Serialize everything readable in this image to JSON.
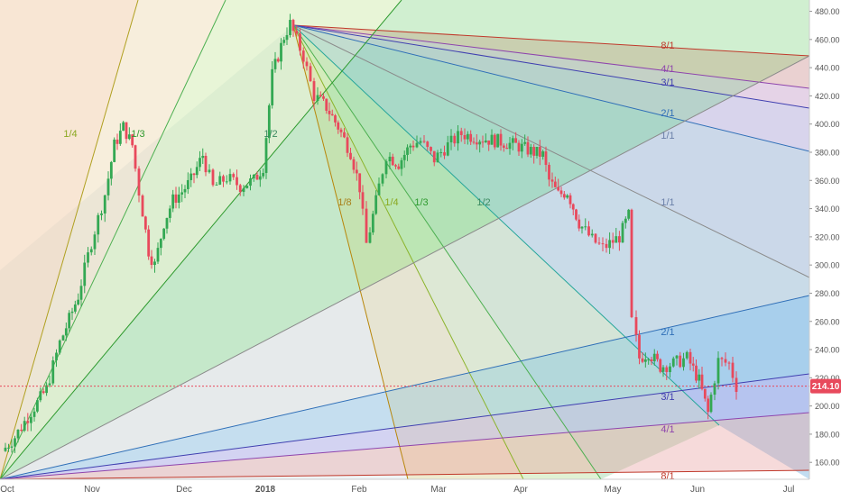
{
  "chart_data": {
    "type": "candlestick",
    "x_labels": [
      "Oct",
      "Nov",
      "Dec",
      "2018",
      "Feb",
      "Mar",
      "Apr",
      "May",
      "Jun",
      "Jul"
    ],
    "y_ticks": [
      "160.00",
      "180.00",
      "200.00",
      "220.00",
      "240.00",
      "260.00",
      "280.00",
      "300.00",
      "320.00",
      "340.00",
      "360.00",
      "380.00",
      "400.00",
      "420.00",
      "440.00",
      "460.00",
      "480.00"
    ],
    "ylim": [
      148,
      488
    ],
    "last_price": "214.10",
    "gann_fan_labels_left": [
      "1/4",
      "1/3",
      "1/2"
    ],
    "gann_fan_labels_right": [
      "1/8",
      "1/4",
      "1/3",
      "1/2",
      "1/1",
      "2/1",
      "3/1",
      "4/1",
      "8/1"
    ],
    "gann_fan_labels_upper": [
      "8/1",
      "4/1",
      "3/1",
      "2/1",
      "1/1"
    ],
    "colors": {
      "up": "#33a853",
      "down": "#e8495c",
      "last_price": "#e8495c",
      "axis_text": "#555555"
    }
  }
}
